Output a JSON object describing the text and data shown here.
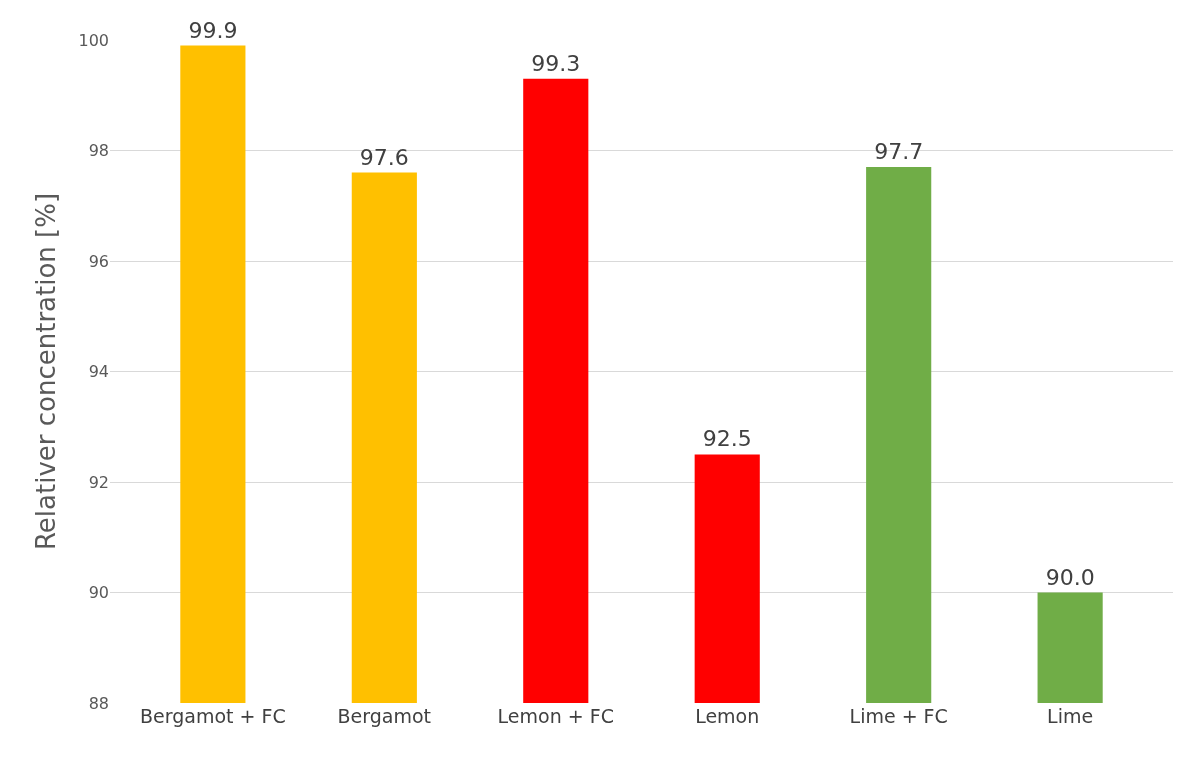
{
  "chart_data": {
    "type": "bar",
    "categories": [
      "Bergamot + FC",
      "Bergamot",
      "Lemon + FC",
      "Lemon",
      "Lime + FC",
      "Lime"
    ],
    "values": [
      99.9,
      97.6,
      99.3,
      92.5,
      97.7,
      90.0
    ],
    "colors": [
      "#ffc000",
      "#ffc000",
      "#ff0000",
      "#ff0000",
      "#70ad47",
      "#70ad47"
    ],
    "value_labels": [
      "99.9",
      "97.6",
      "99.3",
      "92.5",
      "97.7",
      "90.0"
    ],
    "ylabel": "Relativer concentration [%]",
    "ylim": [
      88,
      100
    ],
    "yticks": [
      88,
      90,
      92,
      94,
      96,
      98,
      100
    ],
    "grid": "y",
    "legend": false
  }
}
